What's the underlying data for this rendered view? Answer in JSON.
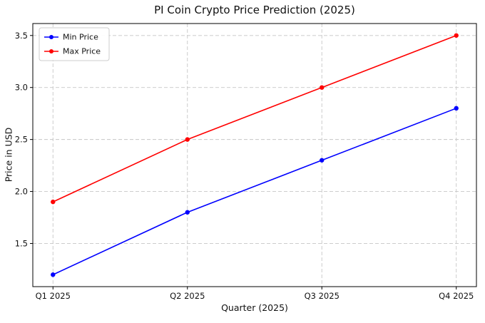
{
  "chart_data": {
    "type": "line",
    "title": "PI Coin Crypto Price Prediction (2025)",
    "xlabel": "Quarter (2025)",
    "ylabel": "Price in USD",
    "categories": [
      "Q1 2025",
      "Q2 2025",
      "Q3 2025",
      "Q4 2025"
    ],
    "series": [
      {
        "name": "Min Price",
        "color": "#0000ff",
        "values": [
          1.2,
          1.8,
          2.3,
          2.8
        ]
      },
      {
        "name": "Max Price",
        "color": "#ff0000",
        "values": [
          1.9,
          2.5,
          3.0,
          3.5
        ]
      }
    ],
    "yticks": [
      1.5,
      2.0,
      2.5,
      3.0,
      3.5
    ],
    "ylim": [
      1.085,
      3.615
    ],
    "grid": true,
    "grid_style": "dashed",
    "legend_position": "upper-left",
    "colors": {
      "spine": "#000000",
      "grid": "#c6c6c6",
      "tick_label": "#111111",
      "legend_border": "#cccccc",
      "legend_bg": "#ffffff"
    }
  }
}
